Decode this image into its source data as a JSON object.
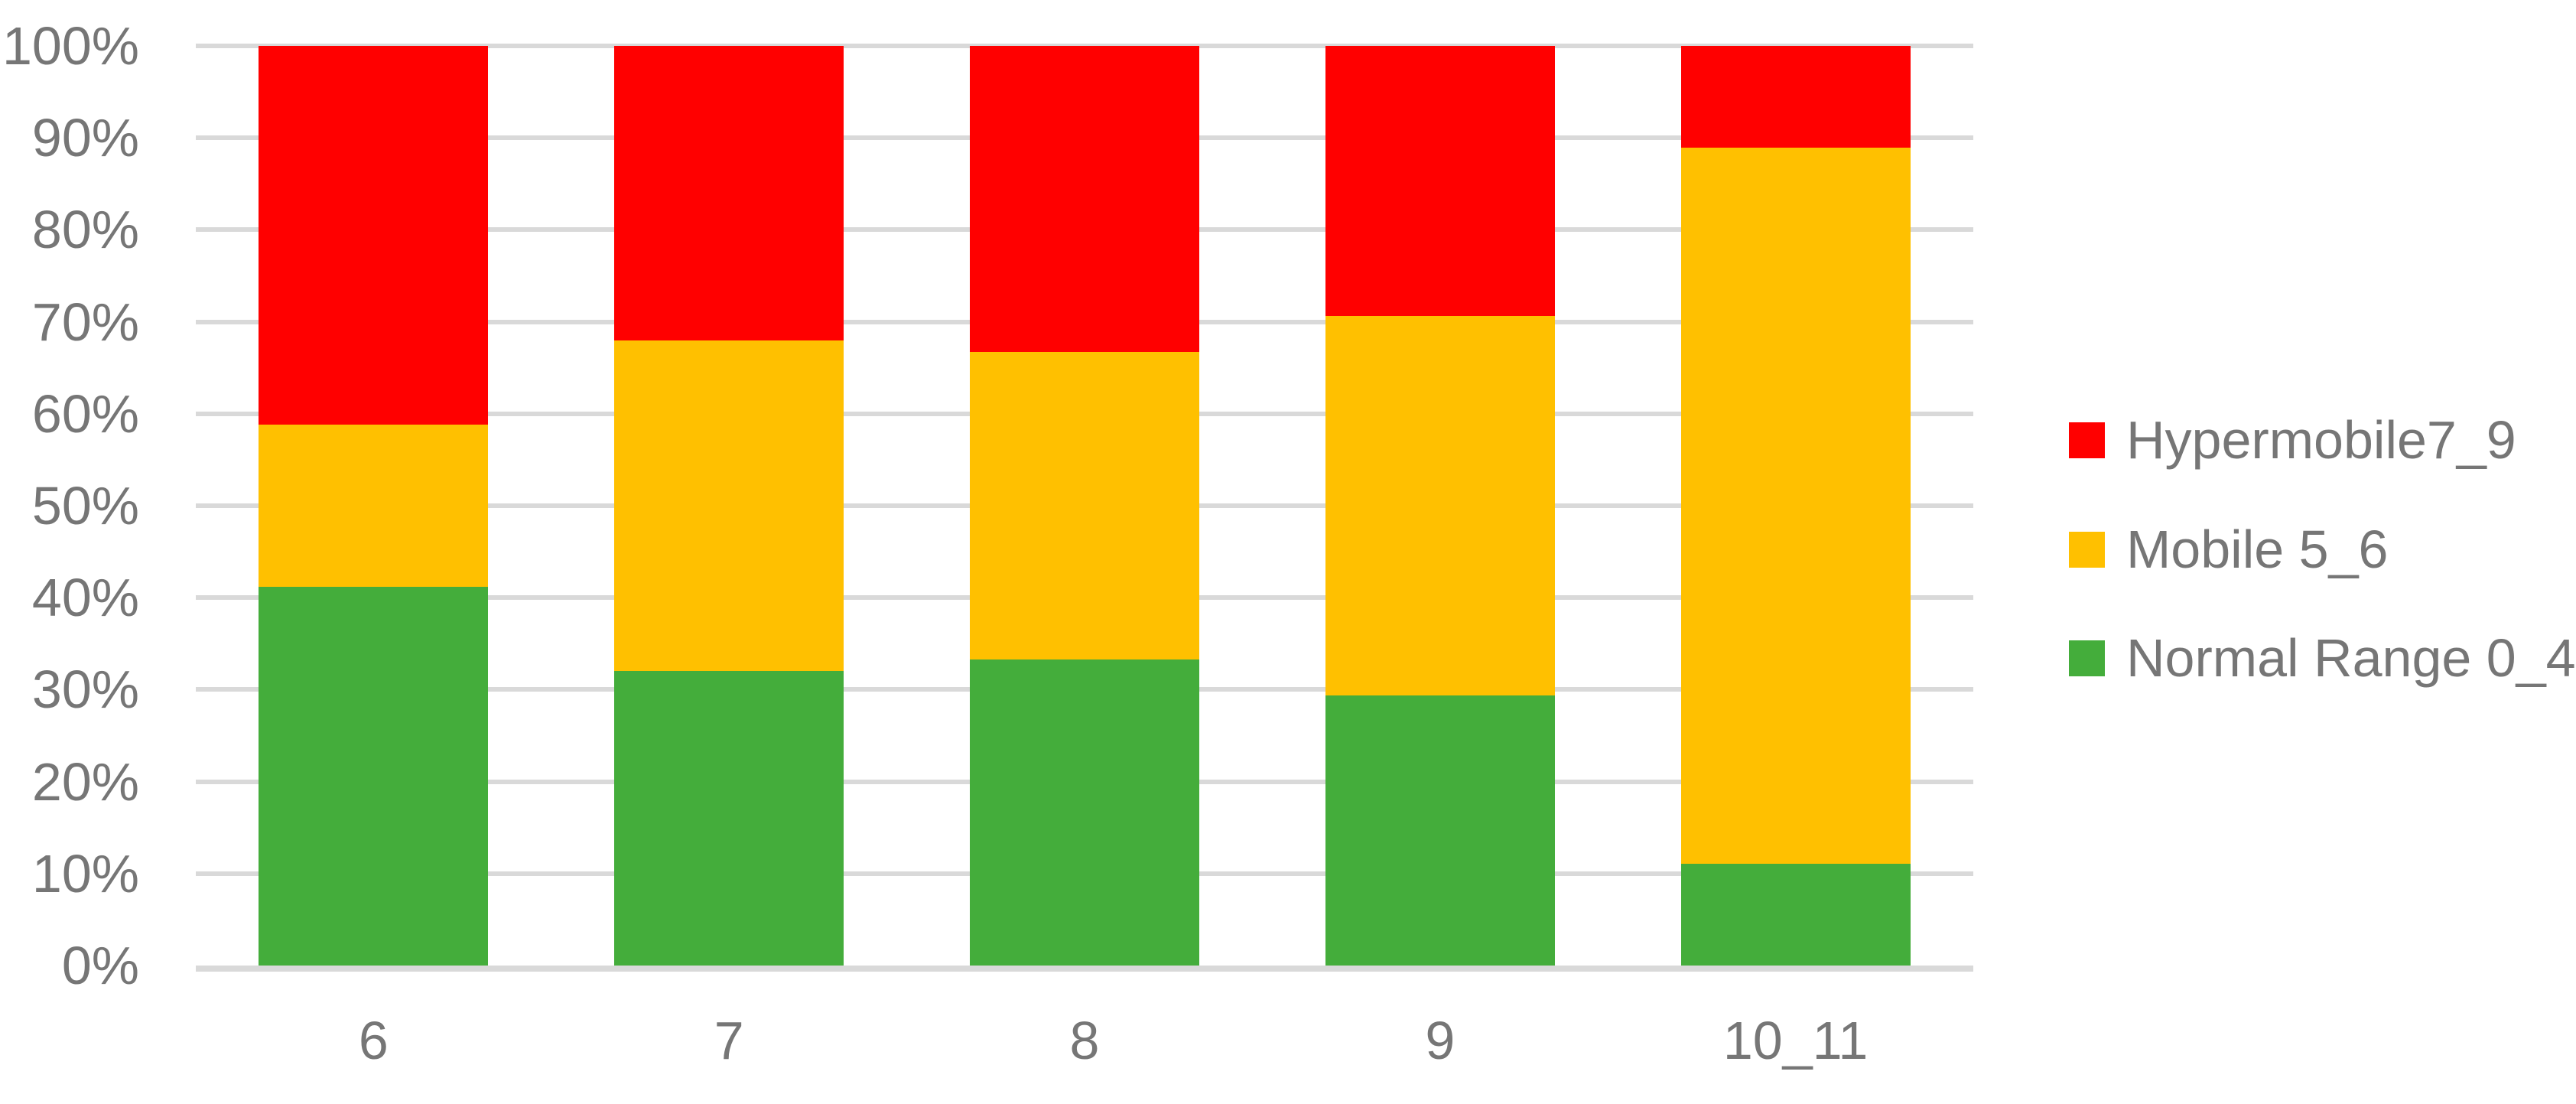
{
  "chart_data": {
    "type": "bar",
    "subtype": "stacked-100-percent",
    "title": "",
    "xlabel": "",
    "ylabel": "",
    "categories": [
      "6",
      "7",
      "8",
      "9",
      "10_11"
    ],
    "series": [
      {
        "name": "Normal Range 0_4",
        "color": "#44ad3b",
        "values": [
          41.2,
          32.0,
          33.3,
          29.4,
          11.1
        ]
      },
      {
        "name": "Mobile 5_6",
        "color": "#ffc000",
        "values": [
          17.6,
          36.0,
          33.4,
          41.2,
          77.8
        ]
      },
      {
        "name": "Hypermobile7_9",
        "color": "#ff0000",
        "values": [
          41.2,
          32.0,
          33.3,
          29.4,
          11.1
        ]
      }
    ],
    "stack_order_bottom_to_top": [
      "Normal Range 0_4",
      "Mobile 5_6",
      "Hypermobile7_9"
    ],
    "y_axis": {
      "ticks": [
        "100%",
        "90%",
        "80%",
        "70%",
        "60%",
        "50%",
        "40%",
        "30%",
        "20%",
        "10%",
        "0%"
      ],
      "min": 0,
      "max": 100,
      "grid": true
    },
    "legend": {
      "position": "right",
      "entries": [
        {
          "label": "Hypermobile7_9",
          "color": "#ff0000"
        },
        {
          "label": "Mobile 5_6",
          "color": "#ffc000"
        },
        {
          "label": "Normal Range 0_4",
          "color": "#44ad3b"
        }
      ]
    },
    "layout_colors": {
      "background": "#ffffff",
      "gridline": "#d9d9d9",
      "axis_line": "#d9d9d9",
      "text": "#767676"
    }
  }
}
